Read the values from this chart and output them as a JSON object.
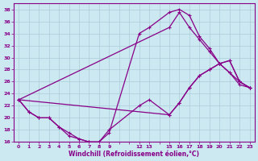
{
  "xlabel": "Windchill (Refroidissement éolien,°C)",
  "bg_color": "#cce8f0",
  "line_color": "#880088",
  "grid_color": "#aaccd8",
  "xlim": [
    -0.5,
    23.5
  ],
  "ylim": [
    16,
    39
  ],
  "yticks": [
    16,
    18,
    20,
    22,
    24,
    26,
    28,
    30,
    32,
    34,
    36,
    38
  ],
  "xtick_positions": [
    0,
    1,
    2,
    3,
    4,
    5,
    6,
    7,
    8,
    9,
    10,
    11,
    12,
    13,
    14,
    15,
    16,
    17,
    18,
    19,
    20,
    21,
    22,
    23
  ],
  "xtick_labels": [
    "0",
    "1",
    "2",
    "3",
    "4",
    "5",
    "6",
    "7",
    "8",
    "9",
    "",
    "",
    "12",
    "13",
    "",
    "15",
    "16",
    "17",
    "18",
    "19",
    "20",
    "21",
    "22",
    "23"
  ],
  "curve_upper_x": [
    0,
    1,
    2,
    3,
    4,
    5,
    6,
    7,
    8,
    9,
    12,
    13,
    15,
    16,
    17,
    18,
    19,
    20,
    21,
    22,
    23
  ],
  "curve_upper_y": [
    23,
    21,
    20,
    20,
    18.5,
    17,
    16.5,
    16,
    16,
    17.5,
    34,
    35,
    37.5,
    38,
    37,
    33.5,
    31.5,
    29,
    27.5,
    25.5,
    25
  ],
  "curve_diag1_x": [
    0,
    15,
    16,
    17,
    18,
    19,
    20,
    21,
    22,
    23
  ],
  "curve_diag1_y": [
    23,
    35,
    37.5,
    35,
    33,
    31,
    29,
    27.5,
    26,
    25
  ],
  "curve_diag2_x": [
    0,
    15,
    16,
    17,
    18,
    19,
    20,
    21,
    22,
    23
  ],
  "curve_diag2_y": [
    23,
    20.5,
    22.5,
    25,
    27,
    28,
    29,
    29.5,
    26,
    25
  ],
  "curve_lower_x": [
    0,
    1,
    2,
    3,
    4,
    5,
    6,
    7,
    8,
    9,
    12,
    13,
    15,
    16,
    17,
    18,
    19,
    20,
    21,
    22,
    23
  ],
  "curve_lower_y": [
    23,
    21,
    20,
    20,
    18.5,
    17.5,
    16.5,
    16,
    16,
    18,
    22,
    23,
    20.5,
    22.5,
    25,
    27,
    28,
    29,
    29.5,
    26,
    25
  ]
}
